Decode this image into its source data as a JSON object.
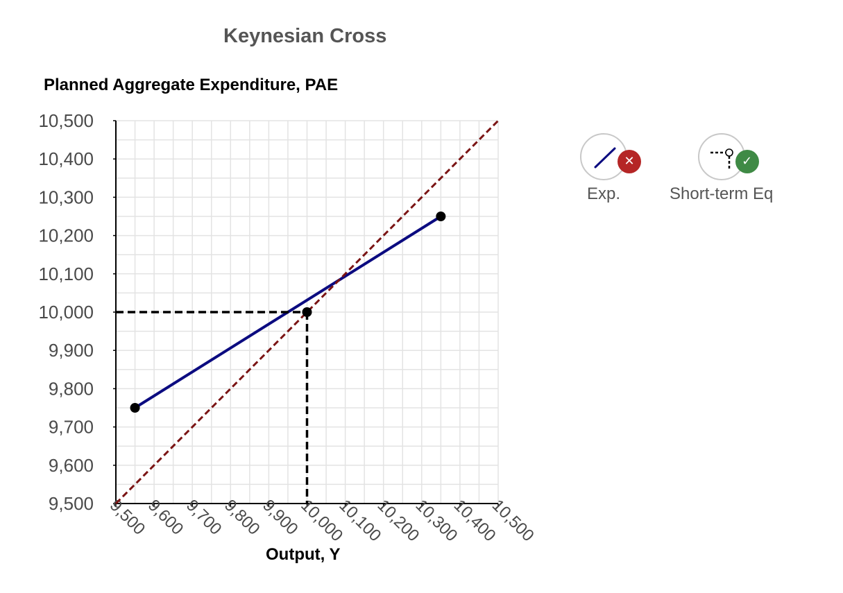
{
  "chart_data": {
    "type": "line",
    "title": "Keynesian Cross",
    "ylabel": "Planned Aggregate Expenditure, PAE",
    "xlabel": "Output, Y",
    "xlim": [
      9500,
      10500
    ],
    "ylim": [
      9500,
      10500
    ],
    "x_ticks": [
      9500,
      9600,
      9700,
      9800,
      9900,
      10000,
      10100,
      10200,
      10300,
      10400,
      10500
    ],
    "y_ticks": [
      9500,
      9600,
      9700,
      9800,
      9900,
      10000,
      10100,
      10200,
      10300,
      10400,
      10500
    ],
    "x_tick_labels": [
      "9,500",
      "9,600",
      "9,700",
      "9,800",
      "9,900",
      "10,000",
      "10,100",
      "10,200",
      "10,300",
      "10,400",
      "10,500"
    ],
    "y_tick_labels": [
      "9,500",
      "9,600",
      "9,700",
      "9,800",
      "9,900",
      "10,000",
      "10,100",
      "10,200",
      "10,300",
      "10,400",
      "10,500"
    ],
    "minor_gridline_step": 50,
    "grid": true,
    "series": [
      {
        "style": "line-with-endpoints",
        "color": "#0b0b80",
        "points": [
          [
            9550,
            9750
          ],
          [
            10350,
            10250
          ]
        ]
      },
      {
        "style": "dashed",
        "color": "#7a1414",
        "points": [
          [
            9500,
            9500
          ],
          [
            10500,
            10500
          ]
        ]
      },
      {
        "style": "equilibrium-marker",
        "color": "#000000",
        "point": [
          10000,
          10000
        ]
      }
    ],
    "legend_position": "top-right"
  },
  "tools": [
    {
      "label": "Exp.",
      "icon": "line-icon",
      "status": "error",
      "status_color": "#b52626",
      "status_glyph": "✕"
    },
    {
      "label": "Short-term Eq",
      "icon": "dashed-point-icon",
      "status": "ok",
      "status_color": "#3f8a45",
      "status_glyph": "✓"
    }
  ]
}
